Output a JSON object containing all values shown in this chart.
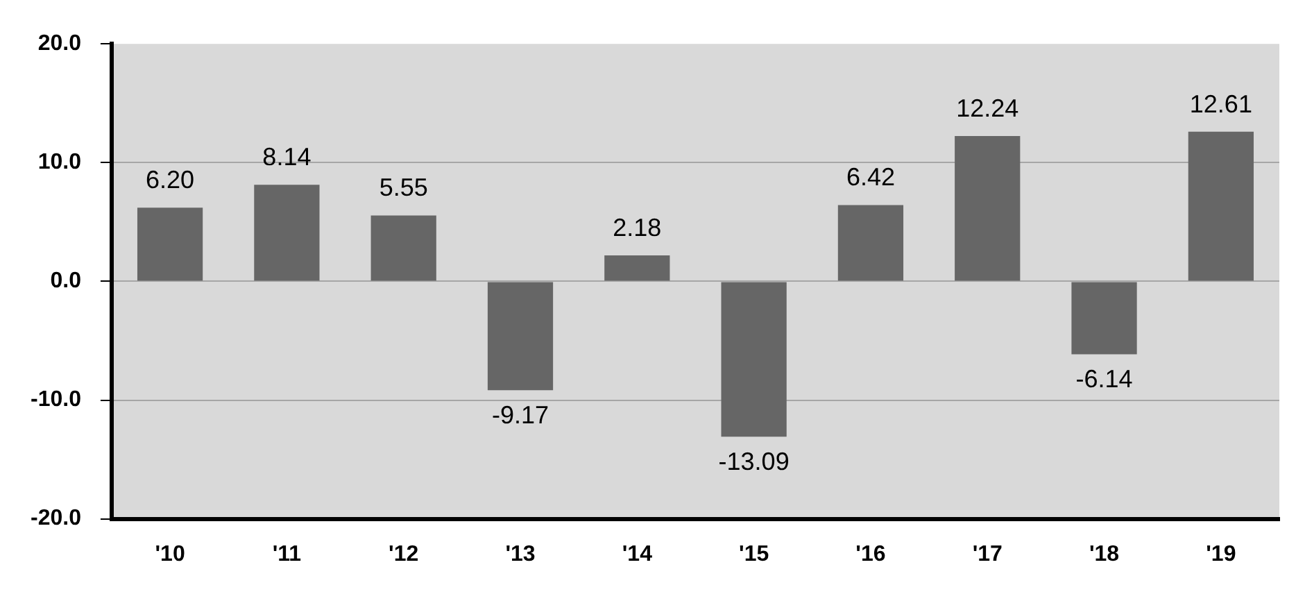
{
  "chart_data": {
    "type": "bar",
    "categories": [
      "'10",
      "'11",
      "'12",
      "'13",
      "'14",
      "'15",
      "'16",
      "'17",
      "'18",
      "'19"
    ],
    "values": [
      6.2,
      8.14,
      5.55,
      -9.17,
      2.18,
      -13.09,
      6.42,
      12.24,
      -6.14,
      12.61
    ],
    "color": "#666666",
    "ylim": [
      -20,
      20
    ],
    "yticks": [
      {
        "value": -20,
        "label": "-20.0"
      },
      {
        "value": -10,
        "label": "-10.0"
      },
      {
        "value": 0,
        "label": "0.0"
      },
      {
        "value": 10,
        "label": "10.0"
      },
      {
        "value": 20,
        "label": "20.0"
      }
    ],
    "grid": "y",
    "value_labels": [
      "6.20",
      "8.14",
      "5.55",
      "-9.17",
      "2.18",
      "-13.09",
      "6.42",
      "12.24",
      "-6.14",
      "12.61"
    ]
  }
}
